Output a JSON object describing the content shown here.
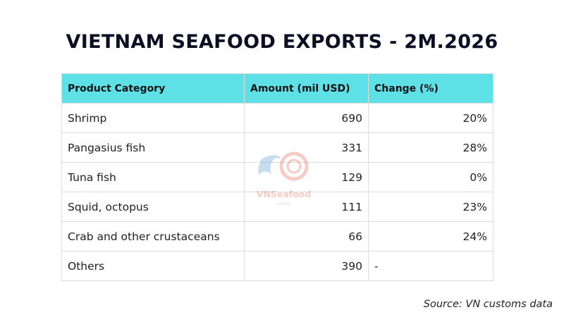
{
  "title": "VIETNAM SEAFOOD EXPORTS - 2M.2026",
  "source": "Source: VN customs data",
  "watermark": {
    "text": "VNSeafood",
    "sub": "insider"
  },
  "colors": {
    "header_bg": "#5ee1e6",
    "title": "#0d0d24",
    "watermark_red": "#e34a2b",
    "watermark_blue": "#3a86c8"
  },
  "chart_data": {
    "type": "table",
    "title": "VIETNAM SEAFOOD EXPORTS - 2M.2026",
    "columns": [
      "Product Category",
      "Amount (mil USD)",
      "Change (%)"
    ],
    "rows": [
      [
        "Shrimp",
        "690",
        "20%"
      ],
      [
        "Pangasius fish",
        "331",
        "28%"
      ],
      [
        "Tuna fish",
        "129",
        "0%"
      ],
      [
        "Squid, octopus",
        "111",
        "23%"
      ],
      [
        "Crab and other crustaceans",
        "66",
        "24%"
      ],
      [
        "Others",
        "390",
        "-"
      ]
    ]
  }
}
